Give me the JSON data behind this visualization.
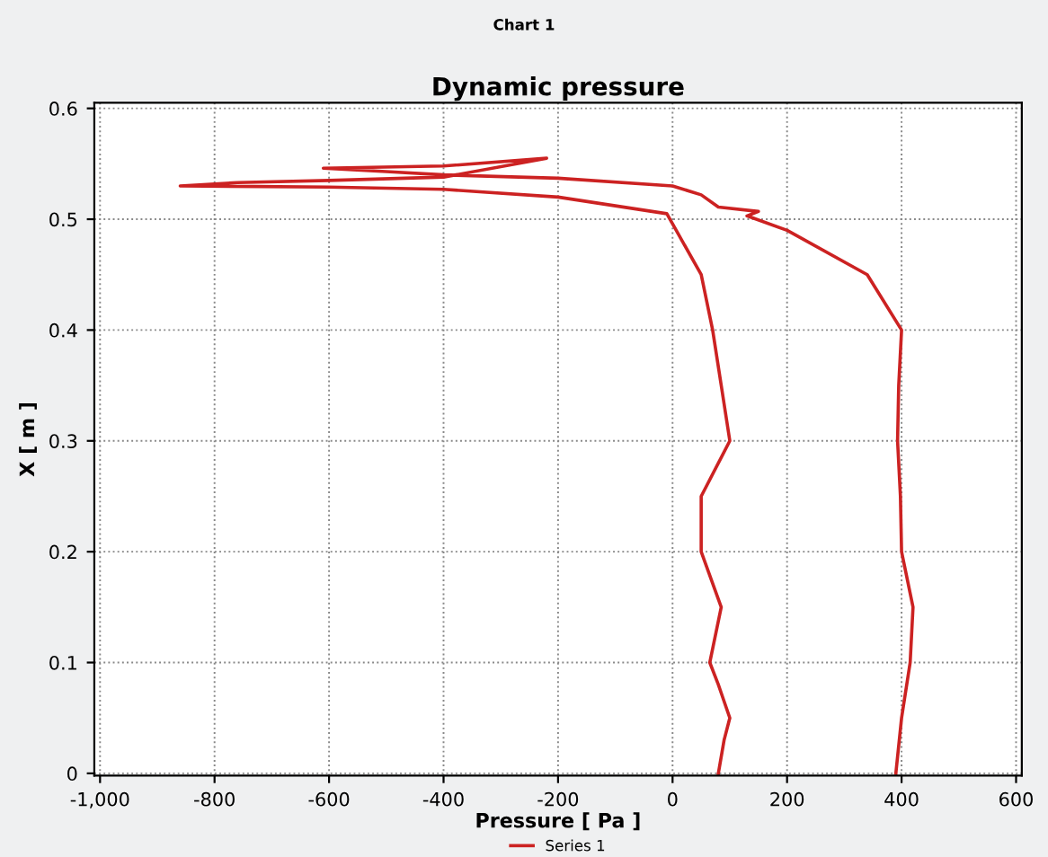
{
  "chart_data": {
    "type": "line",
    "title": "Chart 1",
    "subtitle": "Dynamic pressure",
    "xlabel": "Pressure [ Pa ]",
    "ylabel": "X [ m ]",
    "series": [
      {
        "name": "Series 1",
        "color": "#cc2222",
        "x": [
          80,
          90,
          100,
          80,
          65,
          85,
          50,
          50,
          100,
          85,
          70,
          50,
          -10,
          -200,
          -400,
          -600,
          -860,
          -760,
          -600,
          -400,
          -220,
          -400,
          -610,
          -500,
          -400,
          -200,
          0,
          50,
          80,
          150,
          130,
          200,
          340,
          400,
          395,
          393,
          398,
          400,
          420,
          415,
          400,
          390
        ],
        "values": [
          0,
          0.03,
          0.05,
          0.08,
          0.1,
          0.15,
          0.2,
          0.25,
          0.3,
          0.35,
          0.4,
          0.45,
          0.505,
          0.52,
          0.527,
          0.529,
          0.53,
          0.533,
          0.535,
          0.538,
          0.555,
          0.548,
          0.546,
          0.543,
          0.54,
          0.537,
          0.53,
          0.522,
          0.511,
          0.507,
          0.503,
          0.49,
          0.45,
          0.4,
          0.35,
          0.3,
          0.25,
          0.2,
          0.15,
          0.1,
          0.05,
          0
        ]
      }
    ],
    "xlim": [
      -1010,
      610
    ],
    "ylim": [
      -0.002,
      0.605
    ],
    "xticks": [
      {
        "value": -1000,
        "label": "-1,000"
      },
      -800,
      -600,
      -400,
      -200,
      0,
      200,
      400,
      600
    ],
    "yticks": [
      0,
      0.1,
      0.2,
      0.3,
      0.4,
      0.5,
      0.6
    ],
    "grid": true,
    "legend": "bottom",
    "line_style": "solid",
    "marker": "none"
  }
}
